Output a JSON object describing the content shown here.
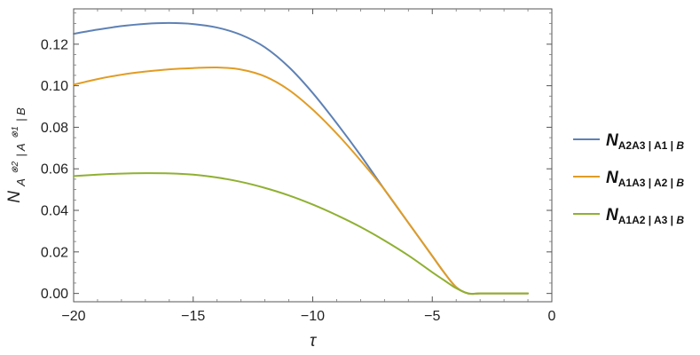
{
  "chart_data": {
    "type": "line",
    "title": "",
    "xlabel": "τ",
    "ylabel": "N_{A⊗2 | A⊗1 | B}",
    "ylabel_parts": {
      "main": "N",
      "sub": "A",
      "sup1": "⊗2",
      "mid": " | A",
      "sup2": "⊗1",
      "end": " | B"
    },
    "xlim": [
      -20,
      0
    ],
    "ylim": [
      -0.004,
      0.137
    ],
    "x_ticks": [
      -20,
      -15,
      -10,
      -5,
      0
    ],
    "x_tick_labels": [
      "−20",
      "−15",
      "−10",
      "−5",
      "0"
    ],
    "y_ticks": [
      0.0,
      0.02,
      0.04,
      0.06,
      0.08,
      0.1,
      0.12
    ],
    "y_tick_labels": [
      "0.00",
      "0.02",
      "0.04",
      "0.06",
      "0.08",
      "0.10",
      "0.12"
    ],
    "grid": false,
    "legend_position": "right",
    "series": [
      {
        "name": "N_{A2A3|A1|B}",
        "legend_main": "N",
        "legend_sub": "A2A3 | A1 | ",
        "legend_sub_italic": "B",
        "color": "#5e81b5",
        "x": [
          -20,
          -19,
          -18,
          -17,
          -16,
          -15,
          -14,
          -13,
          -12,
          -11,
          -10,
          -9,
          -8,
          -7,
          -6,
          -5,
          -4.5,
          -4,
          -3.5,
          -3,
          -2,
          -1
        ],
        "y": [
          0.125,
          0.127,
          0.1287,
          0.1298,
          0.1302,
          0.1297,
          0.128,
          0.1245,
          0.1185,
          0.109,
          0.0965,
          0.082,
          0.0665,
          0.05,
          0.034,
          0.018,
          0.01,
          0.003,
          0.0,
          0.0,
          0.0,
          0.0
        ]
      },
      {
        "name": "N_{A1A3|A2|B}",
        "legend_main": "N",
        "legend_sub": "A1A3 | A2 | ",
        "legend_sub_italic": "B",
        "color": "#e19c24",
        "x": [
          -20,
          -19,
          -18,
          -17,
          -16,
          -15,
          -14,
          -13,
          -12,
          -11,
          -10,
          -9,
          -8,
          -7,
          -6,
          -5,
          -4.5,
          -4,
          -3.5,
          -3,
          -2,
          -1
        ],
        "y": [
          0.1005,
          0.1032,
          0.1053,
          0.1068,
          0.1079,
          0.1085,
          0.1088,
          0.1078,
          0.1045,
          0.098,
          0.0885,
          0.077,
          0.064,
          0.05,
          0.034,
          0.018,
          0.01,
          0.003,
          0.0,
          0.0,
          0.0,
          0.0
        ]
      },
      {
        "name": "N_{A1A2|A3|B}",
        "legend_main": "N",
        "legend_sub": "A1A2 | A3 | ",
        "legend_sub_italic": "B",
        "color": "#8fb032",
        "x": [
          -20,
          -19,
          -18,
          -17,
          -16,
          -15,
          -14,
          -13,
          -12,
          -11,
          -10,
          -9,
          -8,
          -7,
          -6,
          -5,
          -4.5,
          -4,
          -3.5,
          -3,
          -2,
          -1
        ],
        "y": [
          0.0565,
          0.0572,
          0.0577,
          0.0579,
          0.0578,
          0.0572,
          0.0558,
          0.0537,
          0.0508,
          0.0472,
          0.0428,
          0.0377,
          0.032,
          0.0255,
          0.0183,
          0.0102,
          0.0063,
          0.0025,
          0.0,
          0.0,
          0.0,
          0.0
        ]
      }
    ]
  }
}
